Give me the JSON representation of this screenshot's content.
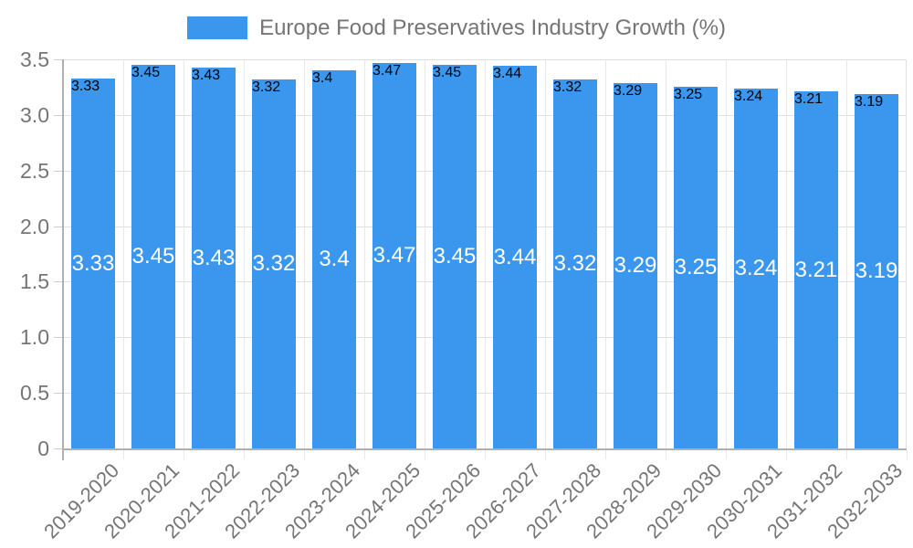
{
  "chart_data": {
    "type": "bar",
    "title": "Europe Food Preservatives Industry Growth (%)",
    "categories": [
      "2019-2020",
      "2020-2021",
      "2021-2022",
      "2022-2023",
      "2023-2024",
      "2024-2025",
      "2025-2026",
      "2026-2027",
      "2027-2028",
      "2028-2029",
      "2029-2030",
      "2030-2031",
      "2031-2032",
      "2032-2033"
    ],
    "series": [
      {
        "name": "Europe Food Preservatives Industry Growth (%)",
        "values": [
          3.33,
          3.45,
          3.43,
          3.32,
          3.4,
          3.47,
          3.45,
          3.44,
          3.32,
          3.29,
          3.25,
          3.24,
          3.21,
          3.19
        ]
      }
    ],
    "bar_value_labels": [
      "3.33",
      "3.45",
      "3.43",
      "3.32",
      "3.4",
      "3.47",
      "3.45",
      "3.44",
      "3.32",
      "3.29",
      "3.25",
      "3.24",
      "3.21",
      "3.19"
    ],
    "xlabel": "",
    "ylabel": "",
    "ylim": [
      0,
      3.5
    ],
    "yticks": [
      0,
      0.5,
      1.0,
      1.5,
      2.0,
      2.5,
      3.0,
      3.5
    ],
    "ytick_labels": [
      "0",
      "0.5",
      "1.0",
      "1.5",
      "2.0",
      "2.5",
      "3.0",
      "3.5"
    ],
    "grid": true,
    "legend_position": "top",
    "colors": {
      "bar": "#3b97ed",
      "bar_label_text": "#ffffff",
      "axis_line": "#b0b0b0",
      "gridline": "#e0e0e0",
      "gridline_vertical": "#e8e8e8",
      "tick_mark": "#cccccc",
      "text": "#757575",
      "background": "#ffffff"
    }
  }
}
